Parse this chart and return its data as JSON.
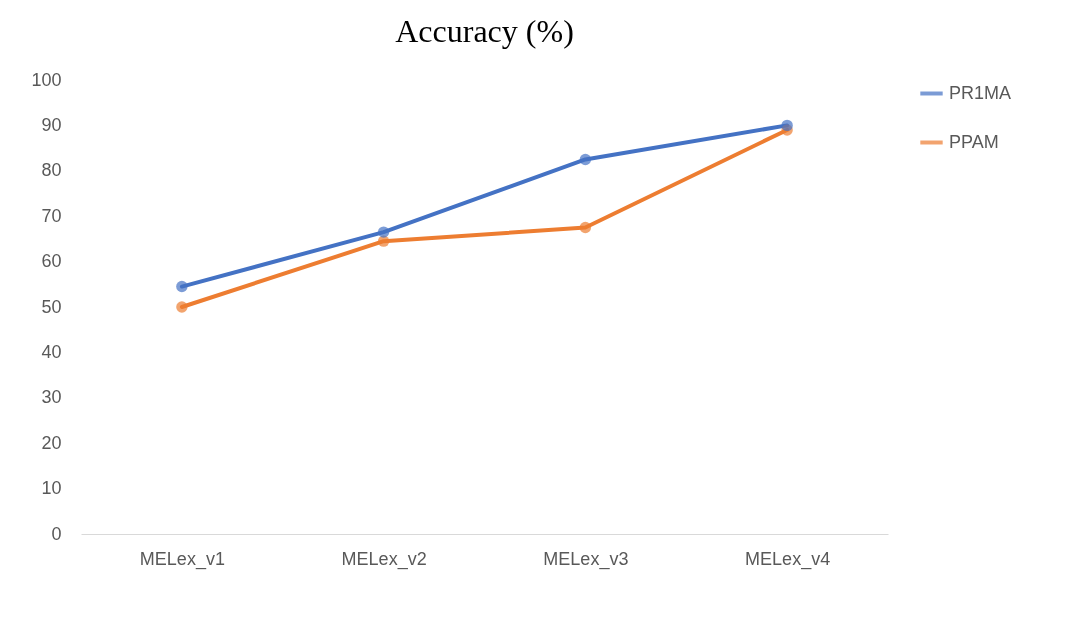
{
  "chart_data": {
    "type": "line",
    "title": "Accuracy (%)",
    "categories": [
      "MELex_v1",
      "MELex_v2",
      "MELex_v3",
      "MELex_v4"
    ],
    "series": [
      {
        "name": "PR1MA",
        "color": "#4472c4",
        "values": [
          54.5,
          66.5,
          82.5,
          90
        ]
      },
      {
        "name": "PPAM",
        "color": "#ed7d31",
        "values": [
          50,
          64.5,
          67.5,
          89
        ]
      }
    ],
    "ylim": [
      0,
      100
    ],
    "yticks": [
      0,
      10,
      20,
      30,
      40,
      50,
      60,
      70,
      80,
      90,
      100
    ],
    "grid": false,
    "legend": "right",
    "marker": "circle",
    "line_style": "solid"
  }
}
